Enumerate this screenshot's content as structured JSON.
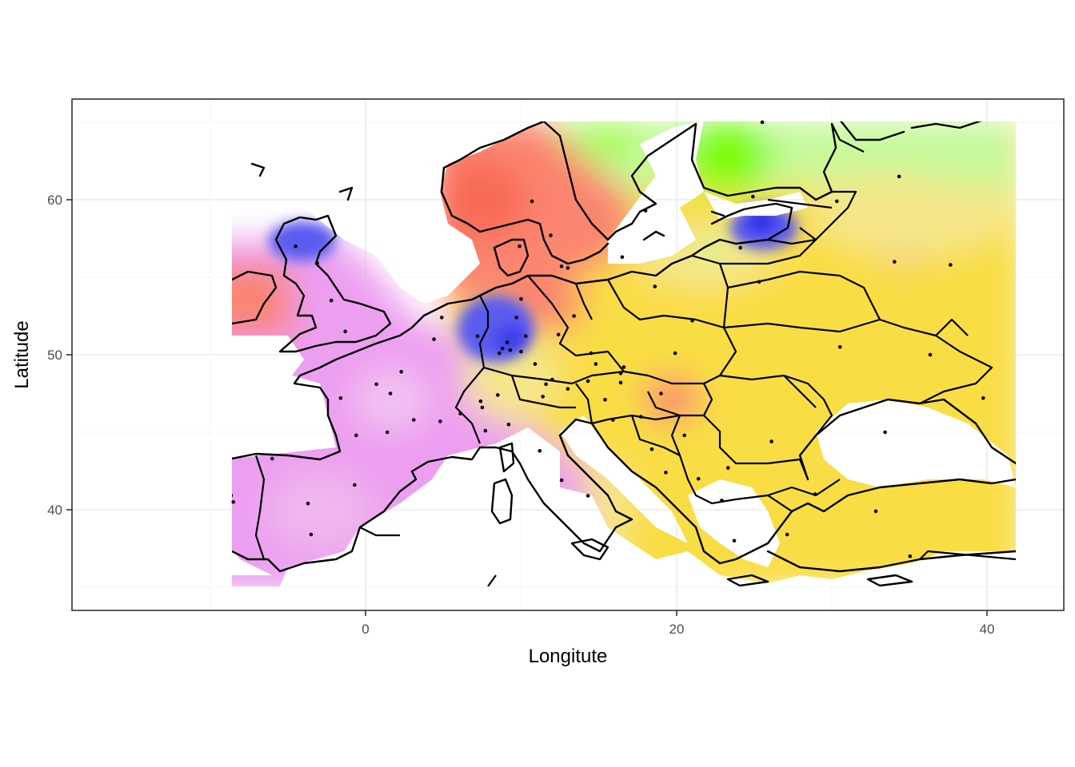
{
  "chart_data": {
    "type": "heatmap",
    "subtype": "interpolated cluster surface over a Europe map",
    "xlabel": "Longitute",
    "ylabel": "Latitude",
    "xlim": [
      -10,
      42
    ],
    "ylim": [
      35,
      65
    ],
    "x_ticks": [
      0,
      20,
      40
    ],
    "y_ticks": [
      40,
      50,
      60
    ],
    "grid": true,
    "legend": "none",
    "colors": {
      "violet": "#ec9ff0",
      "violet_light": "#f0b6ee",
      "salmon": "#fa8570",
      "salmon_dark": "#f86a55",
      "blue": "#5a5cf0",
      "blue_dark": "#2d2ee8",
      "yellow": "#f9dd45",
      "yellow_dark": "#f7d21f",
      "yellow_light": "#f5e68a",
      "green": "#7efc00",
      "green_light": "#c6f99a",
      "points": "#000000"
    },
    "points": [
      [
        -4.5,
        57.0
      ],
      [
        -3.1,
        55.9
      ],
      [
        -2.2,
        53.5
      ],
      [
        -1.3,
        51.5
      ],
      [
        4.9,
        52.4
      ],
      [
        4.4,
        51.0
      ],
      [
        7.2,
        51.2
      ],
      [
        8.8,
        50.4
      ],
      [
        9.3,
        50.3
      ],
      [
        8.6,
        50.1
      ],
      [
        10.0,
        50.2
      ],
      [
        9.1,
        50.8
      ],
      [
        10.3,
        51.2
      ],
      [
        9.7,
        52.4
      ],
      [
        10.0,
        53.6
      ],
      [
        12.4,
        51.3
      ],
      [
        13.4,
        52.5
      ],
      [
        11.6,
        48.1
      ],
      [
        10.9,
        49.4
      ],
      [
        12.0,
        48.4
      ],
      [
        14.5,
        50.1
      ],
      [
        14.8,
        49.4
      ],
      [
        16.6,
        49.2
      ],
      [
        16.4,
        48.2
      ],
      [
        14.3,
        48.3
      ],
      [
        13.0,
        47.8
      ],
      [
        15.4,
        47.1
      ],
      [
        11.4,
        47.3
      ],
      [
        8.5,
        47.4
      ],
      [
        7.4,
        47.0
      ],
      [
        6.1,
        46.2
      ],
      [
        7.5,
        46.6
      ],
      [
        2.3,
        48.9
      ],
      [
        0.7,
        48.1
      ],
      [
        1.6,
        47.5
      ],
      [
        3.1,
        45.8
      ],
      [
        1.4,
        45.0
      ],
      [
        -0.6,
        44.8
      ],
      [
        4.8,
        45.7
      ],
      [
        -1.6,
        47.2
      ],
      [
        -3.7,
        40.4
      ],
      [
        -3.5,
        38.4
      ],
      [
        -6.0,
        43.3
      ],
      [
        -8.5,
        40.5
      ],
      [
        -0.7,
        41.6
      ],
      [
        7.7,
        45.1
      ],
      [
        11.2,
        43.8
      ],
      [
        9.2,
        45.5
      ],
      [
        12.6,
        41.9
      ],
      [
        14.3,
        40.9
      ],
      [
        16.4,
        48.8
      ],
      [
        19.0,
        47.5
      ],
      [
        17.7,
        46.0
      ],
      [
        21.0,
        52.2
      ],
      [
        19.9,
        50.1
      ],
      [
        18.6,
        54.4
      ],
      [
        24.1,
        56.9
      ],
      [
        25.3,
        54.7
      ],
      [
        30.3,
        59.9
      ],
      [
        34.3,
        61.5
      ],
      [
        34.0,
        56.0
      ],
      [
        30.5,
        50.5
      ],
      [
        36.3,
        50.0
      ],
      [
        37.6,
        55.8
      ],
      [
        39.7,
        47.2
      ],
      [
        33.4,
        45.0
      ],
      [
        26.1,
        44.4
      ],
      [
        23.3,
        42.7
      ],
      [
        20.5,
        44.8
      ],
      [
        15.9,
        45.8
      ],
      [
        18.4,
        43.9
      ],
      [
        19.3,
        42.4
      ],
      [
        21.4,
        42.0
      ],
      [
        22.9,
        40.6
      ],
      [
        23.7,
        38.0
      ],
      [
        28.9,
        41.0
      ],
      [
        32.8,
        39.9
      ],
      [
        27.1,
        38.4
      ],
      [
        35.0,
        37.0
      ],
      [
        18.0,
        59.3
      ],
      [
        11.9,
        57.7
      ],
      [
        13.0,
        55.6
      ],
      [
        10.7,
        59.9
      ],
      [
        12.6,
        55.7
      ],
      [
        9.9,
        57.0
      ],
      [
        24.9,
        60.2
      ],
      [
        25.5,
        65.0
      ],
      [
        16.5,
        56.3
      ]
    ]
  }
}
